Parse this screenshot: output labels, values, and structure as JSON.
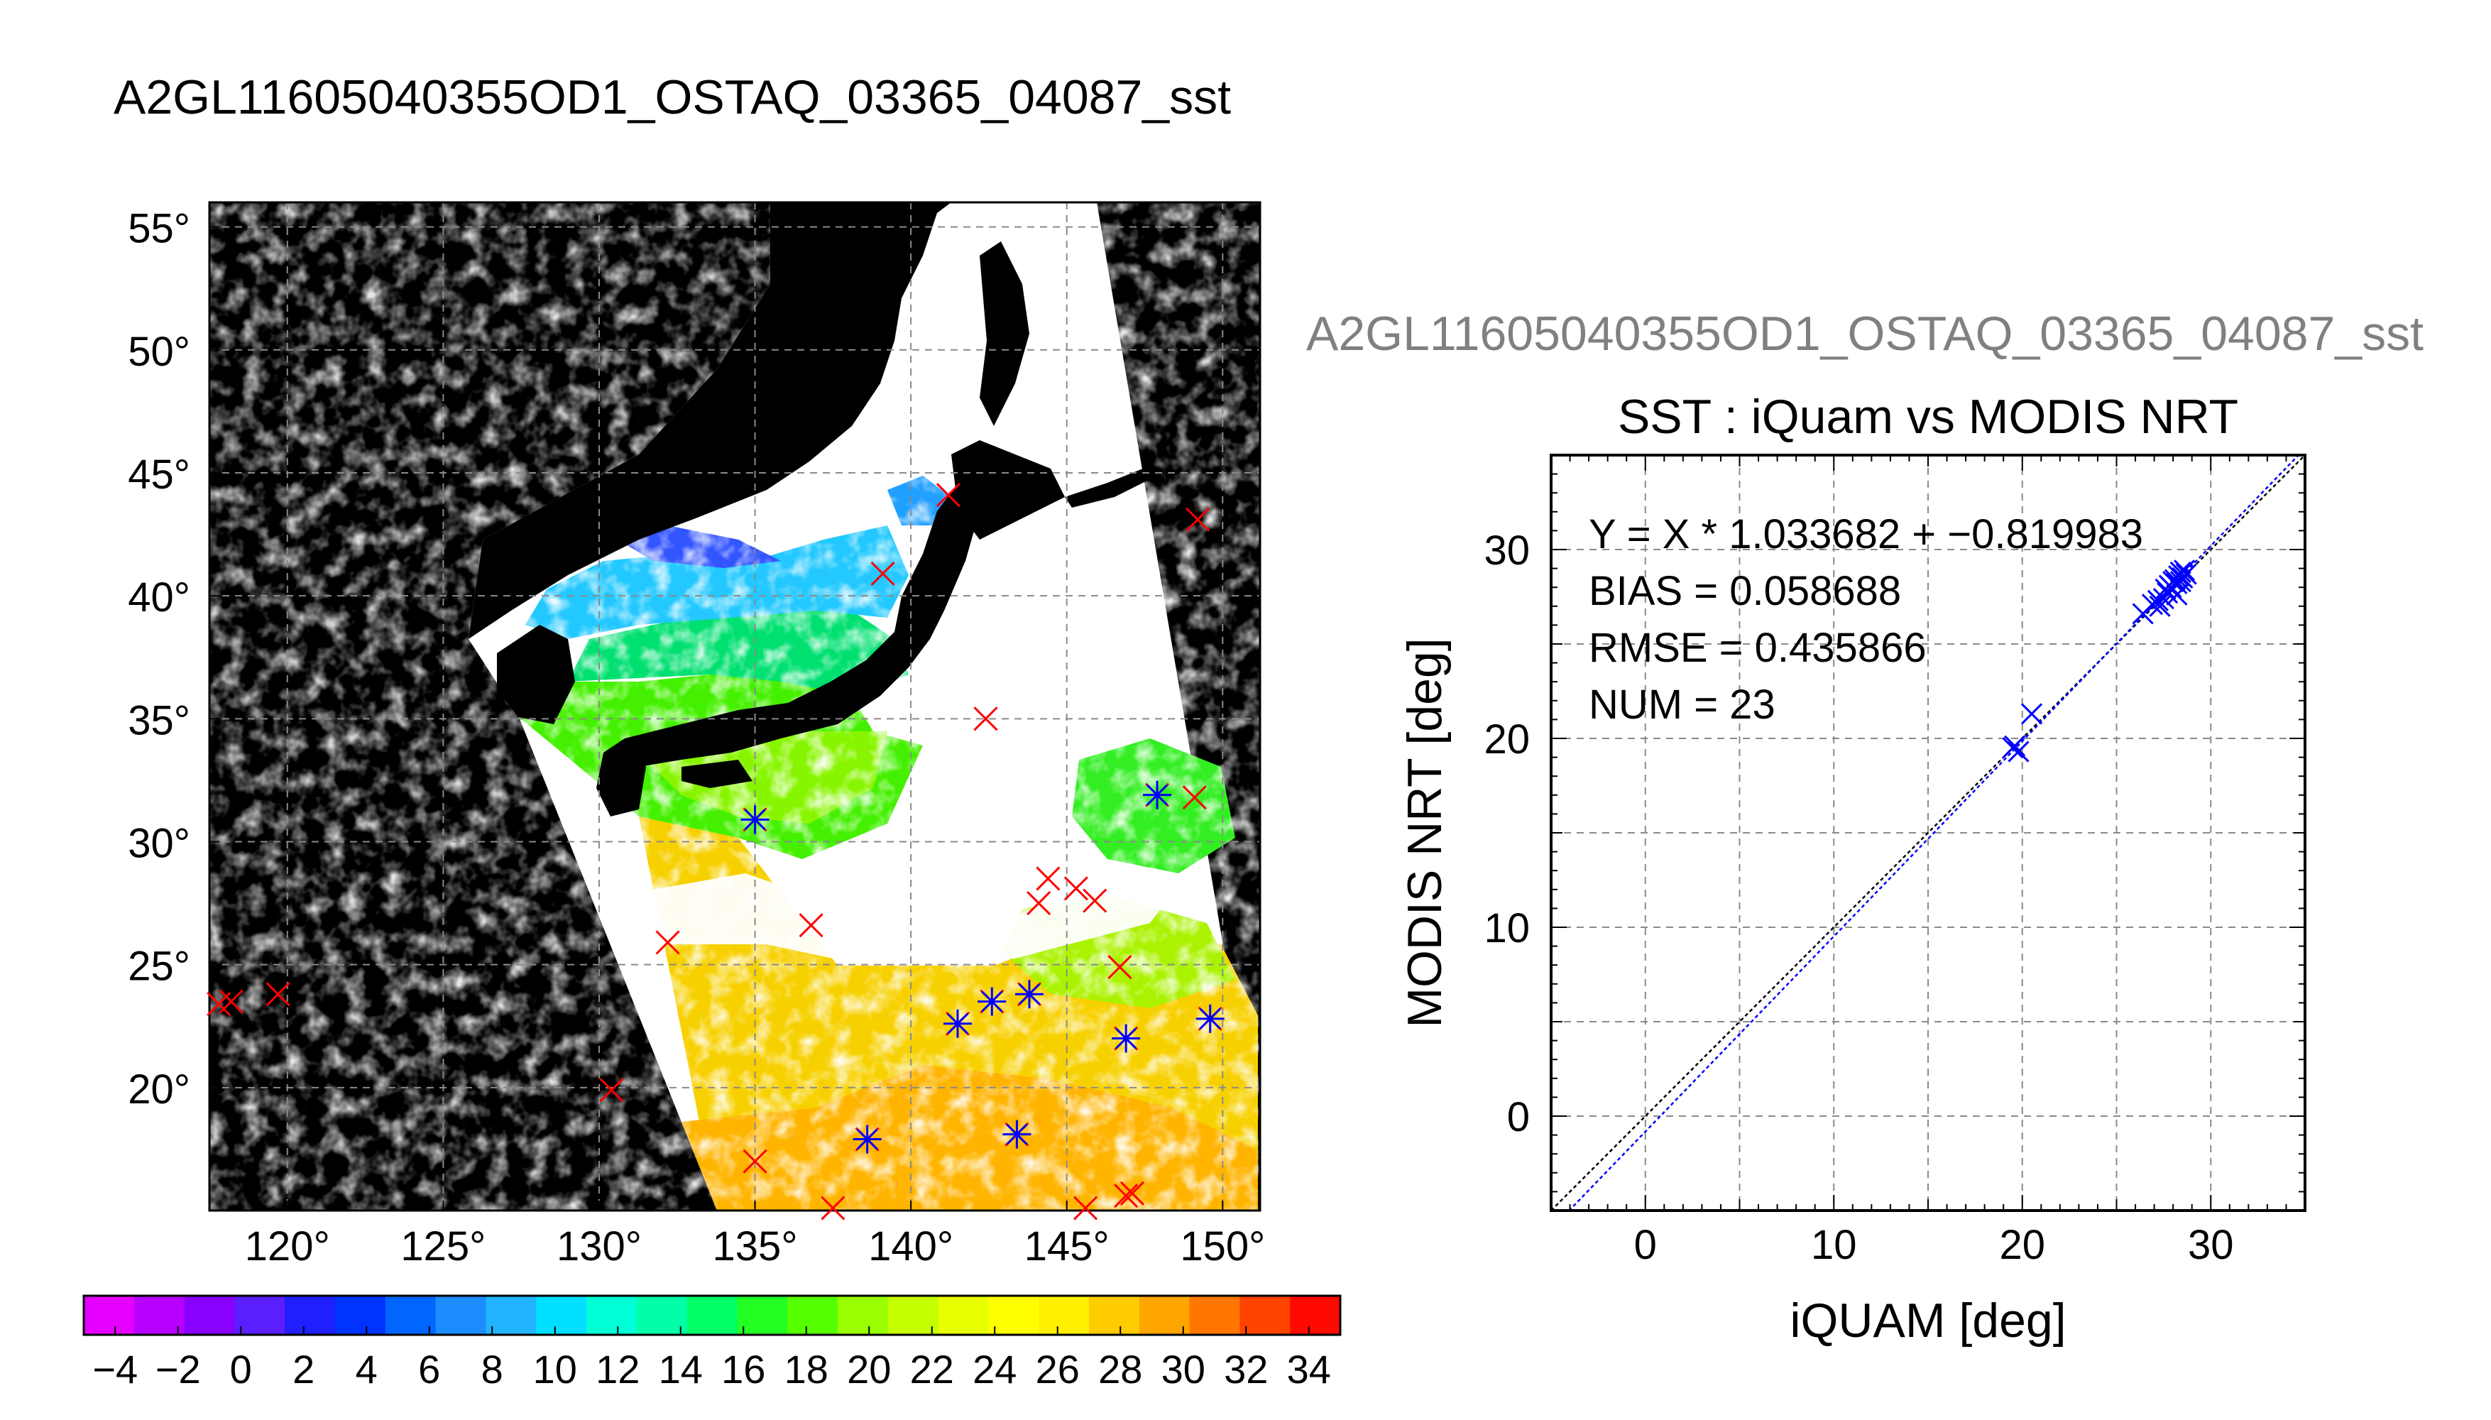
{
  "page_title": "A2GL11605040355OD1_OSTAQ_03365_04087_sst",
  "map": {
    "lat_ticks": [
      55,
      50,
      45,
      40,
      35,
      30,
      25,
      20
    ],
    "lon_ticks": [
      120,
      125,
      130,
      135,
      140,
      145,
      150
    ],
    "lat_range": [
      15,
      56
    ],
    "lon_range": [
      117.5,
      151.2
    ],
    "degree_symbol": "°",
    "grid": true,
    "colors": {
      "background": "#000000",
      "land": "#000000",
      "cloud": "#ffffff",
      "marker_red": "#ff0000",
      "marker_blue": "#0000ff"
    },
    "red_x_markers": [
      [
        141.2,
        44.1
      ],
      [
        139.1,
        40.9
      ],
      [
        149.2,
        43.1
      ],
      [
        142.4,
        35.0
      ],
      [
        135.0,
        30.9
      ],
      [
        147.9,
        31.9
      ],
      [
        149.1,
        31.8
      ],
      [
        144.4,
        28.5
      ],
      [
        144.1,
        27.5
      ],
      [
        145.3,
        28.1
      ],
      [
        145.9,
        27.6
      ],
      [
        136.8,
        26.6
      ],
      [
        132.2,
        25.9
      ],
      [
        146.7,
        24.9
      ],
      [
        117.8,
        23.4
      ],
      [
        118.2,
        23.5
      ],
      [
        119.7,
        23.8
      ],
      [
        130.4,
        19.9
      ],
      [
        141.5,
        22.6
      ],
      [
        142.6,
        23.5
      ],
      [
        143.8,
        23.8
      ],
      [
        146.9,
        22.0
      ],
      [
        149.6,
        22.8
      ],
      [
        138.6,
        17.9
      ],
      [
        143.4,
        18.1
      ],
      [
        135.0,
        17.0
      ],
      [
        137.5,
        15.1
      ],
      [
        145.6,
        15.1
      ],
      [
        146.9,
        15.6
      ],
      [
        147.1,
        15.7
      ]
    ],
    "blue_star_markers": [
      [
        135.0,
        30.9
      ],
      [
        147.9,
        31.9
      ],
      [
        141.5,
        22.6
      ],
      [
        142.6,
        23.5
      ],
      [
        143.8,
        23.8
      ],
      [
        146.9,
        22.0
      ],
      [
        149.6,
        22.8
      ],
      [
        138.6,
        17.9
      ],
      [
        143.4,
        18.1
      ]
    ]
  },
  "colorbar": {
    "min": -5,
    "max": 35,
    "tick_values": [
      -4,
      -2,
      0,
      2,
      4,
      6,
      8,
      10,
      12,
      14,
      16,
      18,
      20,
      22,
      24,
      26,
      28,
      30,
      32,
      34
    ],
    "tick_labels": [
      "−4",
      "−2",
      "0",
      "2",
      "4",
      "6",
      "8",
      "10",
      "12",
      "14",
      "16",
      "18",
      "20",
      "22",
      "24",
      "26",
      "28",
      "30",
      "32",
      "34"
    ],
    "colors": [
      "#e600ff",
      "#b800ff",
      "#8a00ff",
      "#5a1eff",
      "#1f1fff",
      "#0033ff",
      "#0066ff",
      "#1c8cff",
      "#22b4ff",
      "#00dfff",
      "#00ffd6",
      "#00ffa8",
      "#00ff66",
      "#22ff22",
      "#55ff00",
      "#99ff00",
      "#c6ff00",
      "#e8ff00",
      "#ffff00",
      "#fff000",
      "#ffcc00",
      "#ffa500",
      "#ff7700",
      "#ff4400",
      "#ff0a00"
    ]
  },
  "scatter_title_repeat": "A2GL11605040355OD1_OSTAQ_03365_04087_sst",
  "chart_data": {
    "type": "scatter",
    "title": "SST : iQuam vs MODIS NRT",
    "xlabel": "iQUAM [deg]",
    "ylabel": "MODIS NRT [deg]",
    "xlim": [
      -5,
      35
    ],
    "ylim": [
      -5,
      35
    ],
    "xticks": [
      0,
      10,
      20,
      30
    ],
    "yticks": [
      0,
      10,
      20,
      30
    ],
    "grid": true,
    "stats": [
      "Y = X * 1.033682 + −0.819983",
      "BIAS = 0.058688",
      "RMSE = 0.435866",
      "NUM = 23"
    ],
    "fit": {
      "slope": 1.033682,
      "intercept": -0.819983,
      "color": "#0000ff"
    },
    "identity_line_color": "#000000",
    "points": [
      [
        19.5,
        19.5
      ],
      [
        19.8,
        19.3
      ],
      [
        19.6,
        19.6
      ],
      [
        20.5,
        21.3
      ],
      [
        26.4,
        26.6
      ],
      [
        26.9,
        27.1
      ],
      [
        27.3,
        27.0
      ],
      [
        27.5,
        27.4
      ],
      [
        27.6,
        27.9
      ],
      [
        27.7,
        27.7
      ],
      [
        27.8,
        28.1
      ],
      [
        27.9,
        28.0
      ],
      [
        28.0,
        28.3
      ],
      [
        28.1,
        28.4
      ],
      [
        28.2,
        28.2
      ],
      [
        28.3,
        28.6
      ],
      [
        28.4,
        28.8
      ],
      [
        28.5,
        28.5
      ],
      [
        28.6,
        28.9
      ],
      [
        28.7,
        28.7
      ],
      [
        28.2,
        27.6
      ],
      [
        28.4,
        28.3
      ],
      [
        27.2,
        27.3
      ]
    ],
    "point_color": "#0000ff"
  }
}
